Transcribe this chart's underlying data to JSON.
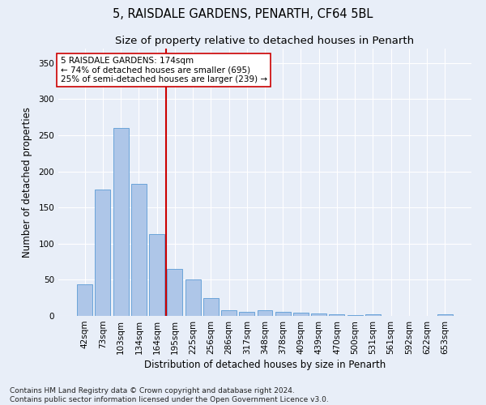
{
  "title_line1": "5, RAISDALE GARDENS, PENARTH, CF64 5BL",
  "title_line2": "Size of property relative to detached houses in Penarth",
  "xlabel": "Distribution of detached houses by size in Penarth",
  "ylabel": "Number of detached properties",
  "categories": [
    "42sqm",
    "73sqm",
    "103sqm",
    "134sqm",
    "164sqm",
    "195sqm",
    "225sqm",
    "256sqm",
    "286sqm",
    "317sqm",
    "348sqm",
    "378sqm",
    "409sqm",
    "439sqm",
    "470sqm",
    "500sqm",
    "531sqm",
    "561sqm",
    "592sqm",
    "622sqm",
    "653sqm"
  ],
  "values": [
    44,
    175,
    260,
    183,
    113,
    65,
    50,
    25,
    8,
    6,
    8,
    6,
    4,
    3,
    2,
    1,
    2,
    0,
    0,
    0,
    2
  ],
  "bar_color": "#AEC6E8",
  "bar_edge_color": "#5B9BD5",
  "vline_x_idx": 4,
  "vline_color": "#CC0000",
  "annotation_text": "5 RAISDALE GARDENS: 174sqm\n← 74% of detached houses are smaller (695)\n25% of semi-detached houses are larger (239) →",
  "annotation_box_color": "#ffffff",
  "annotation_box_edge": "#CC0000",
  "ylim": [
    0,
    370
  ],
  "yticks": [
    0,
    50,
    100,
    150,
    200,
    250,
    300,
    350
  ],
  "bg_color": "#E8EEF8",
  "grid_color": "#ffffff",
  "footnote": "Contains HM Land Registry data © Crown copyright and database right 2024.\nContains public sector information licensed under the Open Government Licence v3.0.",
  "title_fontsize": 10.5,
  "subtitle_fontsize": 9.5,
  "label_fontsize": 8.5,
  "tick_fontsize": 7.5,
  "annot_fontsize": 7.5,
  "footnote_fontsize": 6.5
}
